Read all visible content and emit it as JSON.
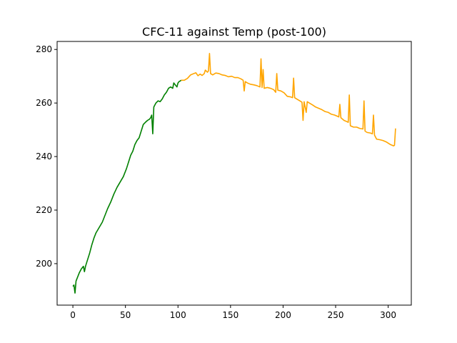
{
  "chart_data": {
    "type": "line",
    "title": "CFC-11 against Temp (post-100)",
    "xlabel": "",
    "ylabel": "",
    "xlim": [
      -15,
      322
    ],
    "ylim": [
      184.5,
      283
    ],
    "xticks": [
      0,
      50,
      100,
      150,
      200,
      250,
      300
    ],
    "yticks": [
      200,
      220,
      240,
      260,
      280
    ],
    "grid": false,
    "colors": {
      "pre": "#008000",
      "post": "#ffa500"
    },
    "series": [
      {
        "color": "#008000",
        "points": [
          [
            0,
            191.5
          ],
          [
            1,
            192
          ],
          [
            2,
            189
          ],
          [
            3,
            193.5
          ],
          [
            4,
            194.5
          ],
          [
            5,
            195.5
          ],
          [
            6,
            196.5
          ],
          [
            8,
            198
          ],
          [
            10,
            199
          ],
          [
            11,
            197
          ],
          [
            12,
            199
          ],
          [
            14,
            201.5
          ],
          [
            16,
            204
          ],
          [
            18,
            207
          ],
          [
            20,
            209.5
          ],
          [
            22,
            211.5
          ],
          [
            25,
            213.5
          ],
          [
            28,
            215.5
          ],
          [
            30,
            217.5
          ],
          [
            33,
            220.5
          ],
          [
            36,
            223
          ],
          [
            39,
            226
          ],
          [
            42,
            228.5
          ],
          [
            45,
            230.5
          ],
          [
            48,
            232.5
          ],
          [
            51,
            235.5
          ],
          [
            53,
            238
          ],
          [
            55,
            240.5
          ],
          [
            57,
            242
          ],
          [
            59,
            244.5
          ],
          [
            61,
            246
          ],
          [
            63,
            247
          ],
          [
            65,
            249.5
          ],
          [
            67,
            252
          ],
          [
            69,
            252.8
          ],
          [
            71,
            253.5
          ],
          [
            73,
            254
          ],
          [
            74,
            254.5
          ],
          [
            75,
            255.5
          ],
          [
            76,
            248.5
          ],
          [
            77,
            258.5
          ],
          [
            79,
            260
          ],
          [
            81,
            260.8
          ],
          [
            83,
            260.5
          ],
          [
            85,
            261.5
          ],
          [
            87,
            263
          ],
          [
            89,
            264
          ],
          [
            91,
            265.5
          ],
          [
            93,
            266
          ],
          [
            95,
            265.5
          ],
          [
            96,
            267.5
          ],
          [
            98,
            266.5
          ],
          [
            99,
            266
          ],
          [
            100,
            267.5
          ],
          [
            101,
            268
          ],
          [
            102,
            268.2
          ],
          [
            103,
            268.5
          ]
        ]
      },
      {
        "color": "#ffa500",
        "points": [
          [
            103,
            268.5
          ],
          [
            106,
            268.5
          ],
          [
            109,
            269.2
          ],
          [
            112,
            270.5
          ],
          [
            115,
            271
          ],
          [
            117,
            271.3
          ],
          [
            119,
            270.2
          ],
          [
            121,
            270.8
          ],
          [
            123,
            270.3
          ],
          [
            125,
            271
          ],
          [
            126,
            272.3
          ],
          [
            128,
            271.5
          ],
          [
            129,
            272
          ],
          [
            130,
            278.5
          ],
          [
            131,
            271
          ],
          [
            133,
            270.5
          ],
          [
            136,
            271.2
          ],
          [
            139,
            271
          ],
          [
            142,
            270.5
          ],
          [
            145,
            270.3
          ],
          [
            148,
            269.8
          ],
          [
            151,
            270
          ],
          [
            154,
            269.5
          ],
          [
            157,
            269.5
          ],
          [
            160,
            269
          ],
          [
            162,
            268.5
          ],
          [
            163,
            264.5
          ],
          [
            164,
            268
          ],
          [
            166,
            267.5
          ],
          [
            169,
            267
          ],
          [
            172,
            266.8
          ],
          [
            175,
            266.5
          ],
          [
            178,
            266
          ],
          [
            179,
            276.5
          ],
          [
            180,
            265.8
          ],
          [
            181,
            272.5
          ],
          [
            182,
            265.5
          ],
          [
            185,
            265.8
          ],
          [
            188,
            265.5
          ],
          [
            191,
            265
          ],
          [
            193,
            264
          ],
          [
            194,
            271
          ],
          [
            195,
            264.8
          ],
          [
            198,
            264.5
          ],
          [
            201,
            263.8
          ],
          [
            204,
            262.5
          ],
          [
            207,
            262.3
          ],
          [
            209,
            262
          ],
          [
            210,
            269.3
          ],
          [
            211,
            262
          ],
          [
            213,
            261.5
          ],
          [
            216,
            260.8
          ],
          [
            218,
            260.3
          ],
          [
            219,
            253.5
          ],
          [
            220,
            260.5
          ],
          [
            222,
            256.5
          ],
          [
            223,
            260.5
          ],
          [
            225,
            260
          ],
          [
            228,
            259.3
          ],
          [
            231,
            258.5
          ],
          [
            234,
            258
          ],
          [
            237,
            257.5
          ],
          [
            240,
            256.8
          ],
          [
            243,
            256.5
          ],
          [
            246,
            255.8
          ],
          [
            249,
            255.5
          ],
          [
            252,
            255
          ],
          [
            253,
            254.8
          ],
          [
            254,
            259.5
          ],
          [
            255,
            254.5
          ],
          [
            258,
            253.5
          ],
          [
            261,
            253
          ],
          [
            262,
            252.8
          ],
          [
            263,
            263
          ],
          [
            264,
            251.5
          ],
          [
            267,
            251
          ],
          [
            270,
            251
          ],
          [
            273,
            250.5
          ],
          [
            276,
            250.3
          ],
          [
            277,
            260.8
          ],
          [
            278,
            249.5
          ],
          [
            280,
            249
          ],
          [
            283,
            248.8
          ],
          [
            285,
            248.5
          ],
          [
            286,
            255.5
          ],
          [
            287,
            248
          ],
          [
            289,
            246.5
          ],
          [
            292,
            246.3
          ],
          [
            295,
            246
          ],
          [
            298,
            245.5
          ],
          [
            300,
            245
          ],
          [
            302,
            244.5
          ],
          [
            304,
            244.2
          ],
          [
            305,
            244
          ],
          [
            306,
            244.2
          ],
          [
            307,
            250.5
          ]
        ]
      }
    ]
  }
}
